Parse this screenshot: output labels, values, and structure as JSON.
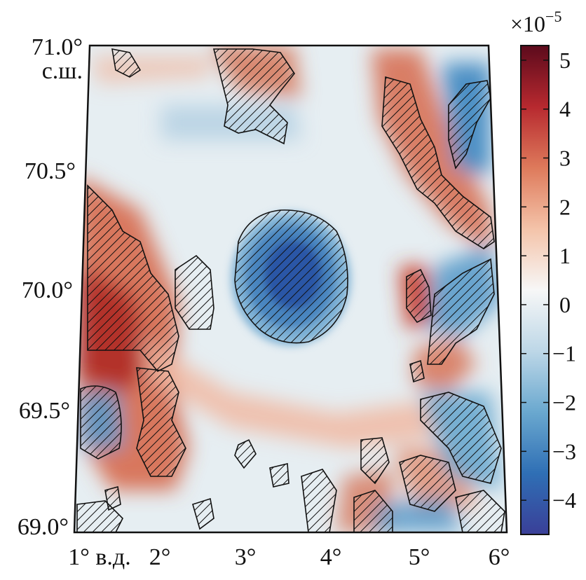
{
  "map": {
    "lat_labels": [
      "71.0°",
      "с.ш.",
      "70.5°",
      "70.0°",
      "69.5°",
      "69.0°"
    ],
    "lon_labels": [
      "1° в.д.",
      "2°",
      "3°",
      "4°",
      "5°",
      "6°"
    ],
    "lat_range": [
      69.0,
      71.0
    ],
    "lon_range": [
      1.0,
      6.0
    ]
  },
  "colorbar": {
    "multiplier": "×10",
    "exponent": "−5",
    "tick_labels": [
      "5",
      "4",
      "3",
      "2",
      "1",
      "0",
      "−1",
      "−2",
      "−3",
      "−4"
    ],
    "tick_values": [
      5,
      4,
      3,
      2,
      1,
      0,
      -1,
      -2,
      -3,
      -4
    ],
    "range": [
      -4.7,
      5.3
    ],
    "colors": [
      "#3a3f98",
      "#2f6fb5",
      "#6aa8cf",
      "#bdd7e7",
      "#f7f7f7",
      "#f4c3a9",
      "#de7a5b",
      "#b7292f",
      "#5c0a1c"
    ]
  }
}
